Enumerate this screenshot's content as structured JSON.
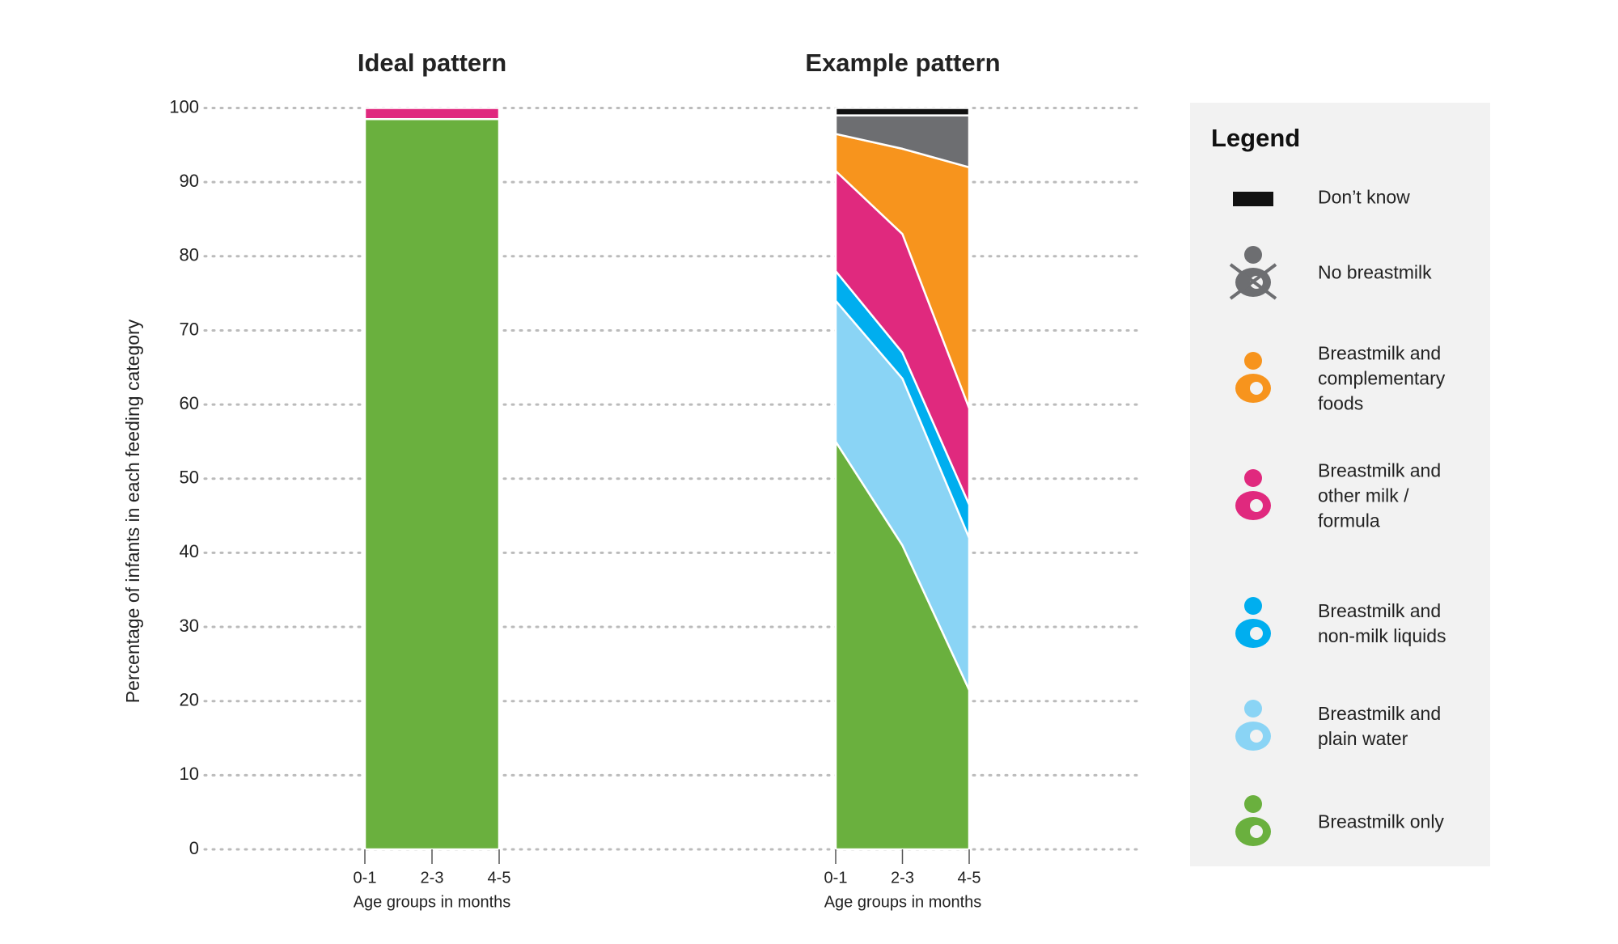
{
  "chart_data": [
    {
      "type": "stacked-area",
      "title": "Ideal pattern",
      "ylabel": "Percentage of infants in each feeding category",
      "xlabel": "Age groups in months",
      "categories": [
        "0-1",
        "2-3",
        "4-5"
      ],
      "ylim": [
        0,
        100
      ],
      "yticks": [
        0,
        10,
        20,
        30,
        40,
        50,
        60,
        70,
        80,
        90,
        100
      ],
      "grid": true,
      "series": [
        {
          "name": "Breastmilk only",
          "color": "#6ab03e",
          "values": [
            98.5,
            98.5,
            98.5
          ]
        },
        {
          "name": "Breastmilk and other milk / formula",
          "color": "#e0297e",
          "values": [
            1.5,
            1.5,
            1.5
          ]
        }
      ]
    },
    {
      "type": "stacked-area",
      "title": "Example pattern",
      "xlabel": "Age groups in months",
      "categories": [
        "0-1",
        "2-3",
        "4-5"
      ],
      "ylim": [
        0,
        100
      ],
      "legend_title": "Legend",
      "series": [
        {
          "name": "Breastmilk only",
          "color": "#6ab03e",
          "values": [
            55,
            41,
            21.5
          ]
        },
        {
          "name": "Breastmilk and plain water",
          "color": "#8ad4f5",
          "values": [
            19,
            22.5,
            20.5
          ]
        },
        {
          "name": "Breastmilk and non-milk liquids",
          "color": "#00aeef",
          "values": [
            4,
            3.5,
            4.5
          ]
        },
        {
          "name": "Breastmilk and other milk / formula",
          "color": "#e0297e",
          "values": [
            13.5,
            16,
            13
          ]
        },
        {
          "name": "Breastmilk and complementary foods",
          "color": "#f7941d",
          "values": [
            5,
            11.5,
            32.5
          ]
        },
        {
          "name": "No breastmilk",
          "color": "#6d6e71",
          "values": [
            2.5,
            4.5,
            7
          ]
        },
        {
          "name": "Don’t know",
          "color": "#111111",
          "values": [
            1,
            1,
            1
          ]
        }
      ]
    }
  ]
}
